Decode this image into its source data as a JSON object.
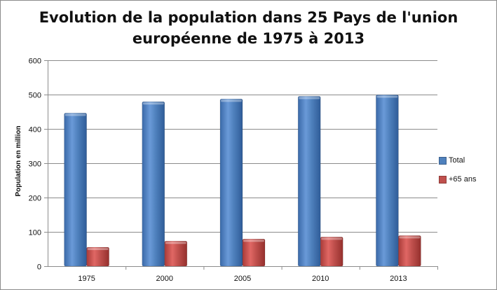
{
  "chart_data": {
    "type": "bar",
    "title_lines": [
      "Evolution de la population dans 25 Pays de l'union",
      "européenne de 1975 à 2013"
    ],
    "xlabel": "",
    "ylabel": "Population en million",
    "categories": [
      "1975",
      "2000",
      "2005",
      "2010",
      "2013"
    ],
    "ylim": [
      0,
      600
    ],
    "yticks": [
      0,
      100,
      200,
      300,
      400,
      500,
      600
    ],
    "grid": true,
    "legend_position": "right",
    "series": [
      {
        "name": "Total",
        "color": "#4f81bd",
        "values": [
          446,
          479,
          487,
          495,
          499
        ]
      },
      {
        "name": "+65 ans",
        "color": "#c0504d",
        "values": [
          55,
          73,
          79,
          85,
          89
        ]
      }
    ]
  }
}
